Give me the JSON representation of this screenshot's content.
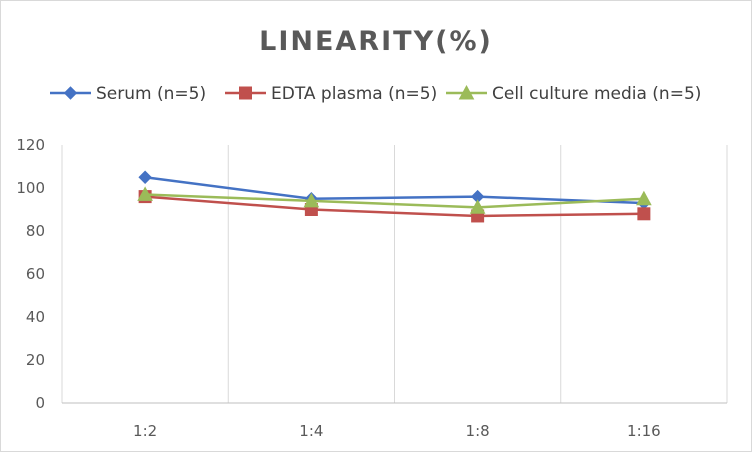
{
  "chart_data": {
    "type": "line",
    "title": "LINEARITY(%)",
    "xlabel": "",
    "ylabel": "",
    "categories": [
      "1:2",
      "1:4",
      "1:8",
      "1:16"
    ],
    "ylim": [
      0,
      120
    ],
    "yticks": [
      0,
      20,
      40,
      60,
      80,
      100,
      120
    ],
    "grid": "vertical",
    "legend_position": "top",
    "series": [
      {
        "name": "Serum (n=5)",
        "marker": "diamond",
        "color": "#4472c4",
        "values": [
          105,
          95,
          96,
          93
        ]
      },
      {
        "name": "EDTA plasma (n=5)",
        "marker": "square",
        "color": "#c0504d",
        "values": [
          96,
          90,
          87,
          88
        ]
      },
      {
        "name": "Cell culture media (n=5)",
        "marker": "triangle",
        "color": "#9bbb59",
        "values": [
          97,
          94,
          91,
          95
        ]
      }
    ]
  }
}
